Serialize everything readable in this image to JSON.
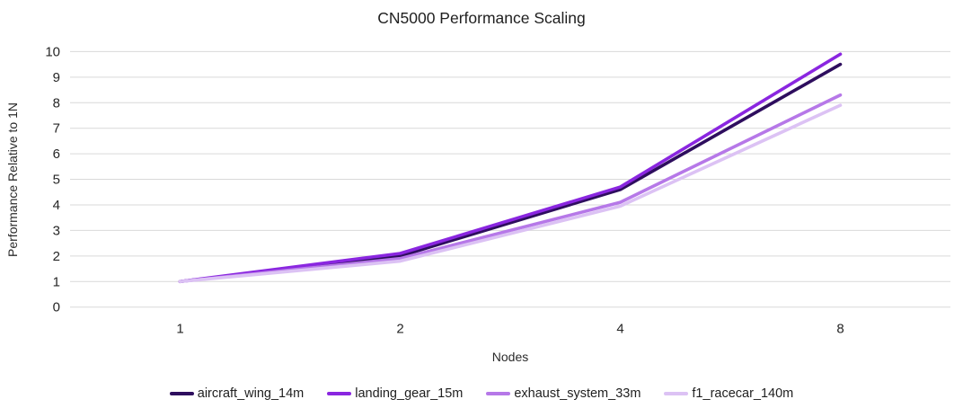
{
  "chart_data": {
    "type": "line",
    "title": "CN5000 Performance Scaling",
    "xlabel": "Nodes",
    "ylabel": "Performance Relative to 1N",
    "categories": [
      "1",
      "2",
      "4",
      "8"
    ],
    "series": [
      {
        "name": "aircraft_wing_14m",
        "color": "#2E0E5E",
        "values": [
          1,
          2.0,
          4.6,
          9.5
        ]
      },
      {
        "name": "landing_gear_15m",
        "color": "#8A26E0",
        "values": [
          1,
          2.1,
          4.7,
          9.9
        ]
      },
      {
        "name": "exhaust_system_33m",
        "color": "#B678E8",
        "values": [
          1,
          1.9,
          4.1,
          8.3
        ]
      },
      {
        "name": "f1_racecar_140m",
        "color": "#DCC2F4",
        "values": [
          1,
          1.8,
          3.95,
          7.9
        ]
      }
    ],
    "ylim": [
      0,
      10
    ],
    "ytick_step": 1,
    "grid": true,
    "legend_position": "bottom",
    "colors": {
      "gridline": "#D9D9D9",
      "tick_text": "#262626",
      "background": "#FFFFFF"
    }
  }
}
